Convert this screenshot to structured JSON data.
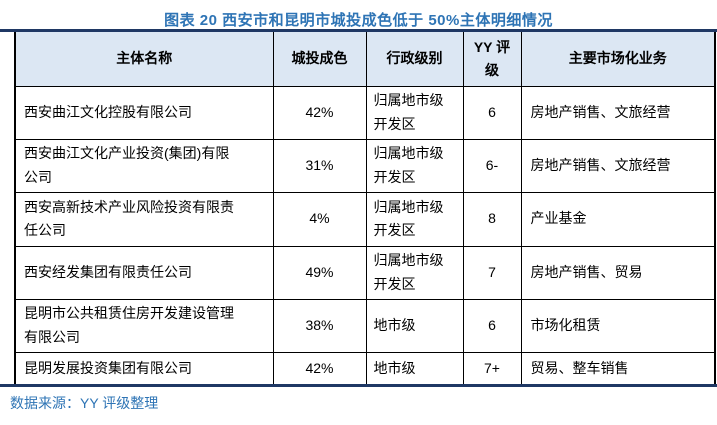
{
  "title": "图表 20 西安市和昆明市城投成色低于 50%主体明细情况",
  "colors": {
    "accent_blue": "#2E74B5",
    "rule_navy": "#1F3864",
    "header_bg": "#DCE7F3",
    "table_border": "#000000"
  },
  "table": {
    "headers": [
      "主体名称",
      "城投成色",
      "行政级别",
      "YY 评\n级",
      "主要市场化业务"
    ],
    "rows": [
      {
        "name": "西安曲江文化控股有限公司",
        "chengtou_chengse": "42%",
        "admin_level": "归属地市级\n开发区",
        "yy_rating": "6",
        "market_business": "房地产销售、文旅经营"
      },
      {
        "name": "西安曲江文化产业投资(集团)有限\n公司",
        "chengtou_chengse": "31%",
        "admin_level": "归属地市级\n开发区",
        "yy_rating": "6-",
        "market_business": "房地产销售、文旅经营"
      },
      {
        "name": "西安高新技术产业风险投资有限责\n任公司",
        "chengtou_chengse": "4%",
        "admin_level": "归属地市级\n开发区",
        "yy_rating": "8",
        "market_business": "产业基金"
      },
      {
        "name": "西安经发集团有限责任公司",
        "chengtou_chengse": "49%",
        "admin_level": "归属地市级\n开发区",
        "yy_rating": "7",
        "market_business": "房地产销售、贸易"
      },
      {
        "name": "昆明市公共租赁住房开发建设管理\n有限公司",
        "chengtou_chengse": "38%",
        "admin_level": "地市级",
        "yy_rating": "6",
        "market_business": "市场化租赁"
      },
      {
        "name": "昆明发展投资集团有限公司",
        "chengtou_chengse": "42%",
        "admin_level": "地市级",
        "yy_rating": "7+",
        "market_business": "贸易、整车销售"
      }
    ]
  },
  "footer": {
    "source": "数据来源：YY 评级整理"
  }
}
